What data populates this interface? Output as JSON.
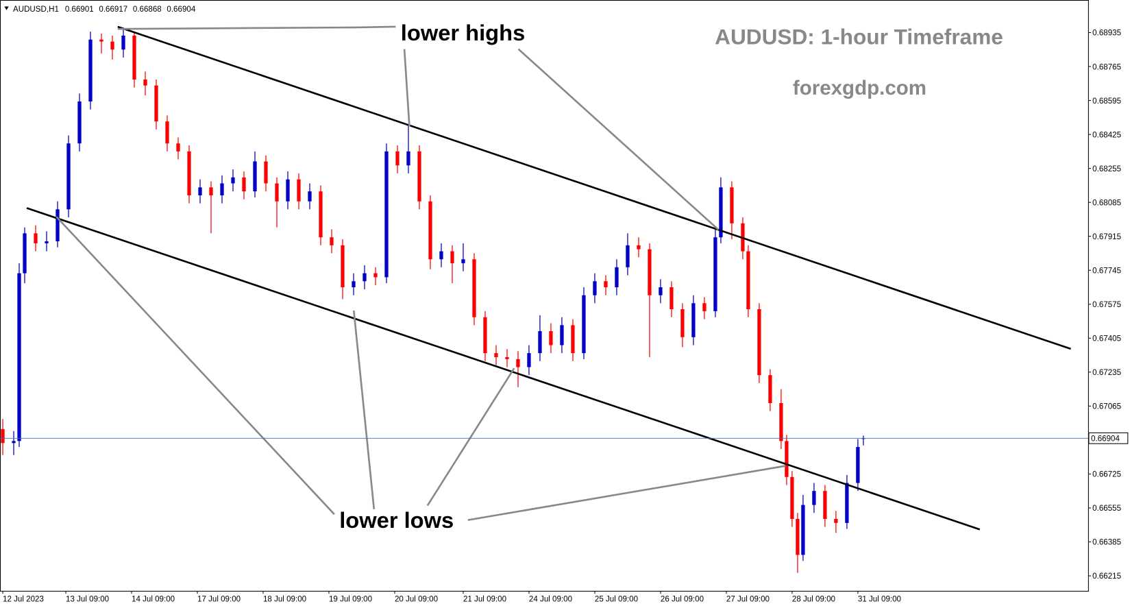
{
  "chart_data": {
    "type": "candlestick",
    "symbol": "AUDUSD,H1",
    "header_ohlc": [
      0.66901,
      0.66917,
      0.66868,
      0.66904
    ],
    "title": "AUDUSD: 1-hour Timeframe",
    "subtitle": "forexgdp.com",
    "annotations": [
      "lower highs",
      "lower lows"
    ],
    "up_color": "#0000cc",
    "down_color": "#ff0000",
    "x": [
      0,
      4,
      6,
      8,
      12,
      16,
      20,
      24,
      28,
      32,
      36,
      40,
      44,
      48,
      52,
      56,
      60,
      64,
      68,
      72,
      76,
      80,
      84,
      88,
      92,
      96,
      100,
      104,
      108,
      112,
      116,
      120,
      124,
      128,
      132,
      136,
      140,
      144,
      148,
      152,
      156,
      160,
      164,
      168,
      172,
      176,
      180,
      184,
      188,
      192,
      196,
      200,
      204,
      208,
      212,
      216,
      220,
      224,
      228,
      232,
      236,
      240,
      244,
      248,
      252,
      256,
      260,
      262,
      266,
      270,
      272,
      276,
      280,
      284,
      286,
      288,
      290,
      292,
      296,
      300,
      304,
      308,
      312,
      314
    ],
    "open": [
      0.6695,
      0.6688,
      0.6689,
      0.6773,
      0.6793,
      0.6788,
      0.6789,
      0.6805,
      0.6838,
      0.6859,
      0.689,
      0.6889,
      0.6885,
      0.6892,
      0.687,
      0.6867,
      0.6849,
      0.6838,
      0.6834,
      0.6812,
      0.6816,
      0.6812,
      0.6818,
      0.6821,
      0.6814,
      0.6829,
      0.6818,
      0.6809,
      0.682,
      0.6809,
      0.6814,
      0.6791,
      0.6787,
      0.6766,
      0.6769,
      0.6773,
      0.6771,
      0.6834,
      0.6827,
      0.6834,
      0.6809,
      0.678,
      0.6784,
      0.6778,
      0.678,
      0.6751,
      0.6733,
      0.6731,
      0.673,
      0.6726,
      0.6733,
      0.6744,
      0.6737,
      0.6747,
      0.6733,
      0.6762,
      0.6769,
      0.6766,
      0.6776,
      0.6787,
      0.6785,
      0.6762,
      0.6766,
      0.6755,
      0.6741,
      0.6758,
      0.6754,
      0.6791,
      0.6816,
      0.6798,
      0.6784,
      0.6755,
      0.6722,
      0.6708,
      0.6689,
      0.6671,
      0.665,
      0.6632,
      0.6657,
      0.6664,
      0.665,
      0.6648,
      0.6668,
      0.66901
    ],
    "high": [
      0.67,
      0.6694,
      0.6778,
      0.6796,
      0.6797,
      0.6794,
      0.6809,
      0.6842,
      0.6863,
      0.6894,
      0.6893,
      0.6892,
      0.6896,
      0.6894,
      0.6874,
      0.687,
      0.6852,
      0.6841,
      0.6837,
      0.682,
      0.6819,
      0.6822,
      0.6825,
      0.6824,
      0.6834,
      0.6832,
      0.6821,
      0.6824,
      0.6823,
      0.6818,
      0.6817,
      0.6795,
      0.679,
      0.6773,
      0.6777,
      0.6776,
      0.6838,
      0.6837,
      0.6847,
      0.6837,
      0.6812,
      0.6788,
      0.6787,
      0.6788,
      0.6783,
      0.6754,
      0.6737,
      0.6735,
      0.6734,
      0.6737,
      0.6752,
      0.6748,
      0.6751,
      0.675,
      0.6766,
      0.6773,
      0.6772,
      0.678,
      0.6793,
      0.6791,
      0.6788,
      0.677,
      0.6769,
      0.6758,
      0.6762,
      0.6761,
      0.6795,
      0.6821,
      0.6819,
      0.6801,
      0.6787,
      0.6758,
      0.6725,
      0.6715,
      0.6692,
      0.6674,
      0.6653,
      0.6662,
      0.6668,
      0.6667,
      0.6654,
      0.6672,
      0.669,
      0.66917
    ],
    "low": [
      0.6682,
      0.6682,
      0.6686,
      0.6768,
      0.6784,
      0.6784,
      0.6786,
      0.6801,
      0.6834,
      0.6855,
      0.6883,
      0.688,
      0.6881,
      0.6866,
      0.6862,
      0.6845,
      0.6834,
      0.683,
      0.6808,
      0.6808,
      0.6793,
      0.6808,
      0.6814,
      0.681,
      0.6811,
      0.6814,
      0.6796,
      0.6805,
      0.6805,
      0.6805,
      0.6787,
      0.6783,
      0.676,
      0.6762,
      0.6765,
      0.6767,
      0.6768,
      0.6823,
      0.6823,
      0.6805,
      0.6775,
      0.6776,
      0.6768,
      0.6774,
      0.6747,
      0.6729,
      0.6727,
      0.6726,
      0.6716,
      0.6722,
      0.6729,
      0.6733,
      0.6733,
      0.6729,
      0.673,
      0.6758,
      0.6762,
      0.6762,
      0.6772,
      0.6781,
      0.6731,
      0.6758,
      0.6751,
      0.6736,
      0.6737,
      0.675,
      0.6751,
      0.6788,
      0.679,
      0.678,
      0.6751,
      0.6718,
      0.6704,
      0.6685,
      0.6667,
      0.6646,
      0.6623,
      0.6629,
      0.6653,
      0.6646,
      0.6643,
      0.6645,
      0.6664,
      0.66868
    ],
    "close": [
      0.6688,
      0.6689,
      0.6773,
      0.6793,
      0.6788,
      0.6789,
      0.6805,
      0.6838,
      0.6859,
      0.689,
      0.6889,
      0.6885,
      0.6892,
      0.687,
      0.6867,
      0.6849,
      0.6838,
      0.6834,
      0.6812,
      0.6816,
      0.6812,
      0.6818,
      0.6821,
      0.6814,
      0.6829,
      0.6818,
      0.6809,
      0.682,
      0.6809,
      0.6814,
      0.6791,
      0.6787,
      0.6766,
      0.6769,
      0.6773,
      0.6771,
      0.6834,
      0.6827,
      0.6834,
      0.6809,
      0.678,
      0.6784,
      0.6778,
      0.678,
      0.6751,
      0.6733,
      0.6731,
      0.673,
      0.6726,
      0.6733,
      0.6744,
      0.6737,
      0.6747,
      0.6733,
      0.6762,
      0.6769,
      0.6766,
      0.6776,
      0.6787,
      0.6785,
      0.6762,
      0.6766,
      0.6755,
      0.6741,
      0.6758,
      0.6754,
      0.6791,
      0.6816,
      0.6798,
      0.6784,
      0.6755,
      0.6722,
      0.6708,
      0.6689,
      0.6671,
      0.665,
      0.6632,
      0.6657,
      0.6664,
      0.665,
      0.6648,
      0.6668,
      0.6686,
      0.66904
    ],
    "current_price": 0.66904,
    "current_price_color": "#4a6ab0",
    "xlim": [
      -1,
      396
    ],
    "ylim": [
      0.6614,
      0.6908
    ],
    "xticks": [
      {
        "value": 0,
        "label": "12 Jul 2023"
      },
      {
        "value": 23,
        "label": "13 Jul 09:00"
      },
      {
        "value": 47,
        "label": "14 Jul 09:00"
      },
      {
        "value": 71,
        "label": "17 Jul 09:00"
      },
      {
        "value": 95,
        "label": "18 Jul 09:00"
      },
      {
        "value": 119,
        "label": "19 Jul 09:00"
      },
      {
        "value": 143,
        "label": "20 Jul 09:00"
      },
      {
        "value": 168,
        "label": "21 Jul 09:00"
      },
      {
        "value": 192,
        "label": "24 Jul 09:00"
      },
      {
        "value": 216,
        "label": "25 Jul 09:00"
      },
      {
        "value": 240,
        "label": "26 Jul 09:00"
      },
      {
        "value": 264,
        "label": "27 Jul 09:00"
      },
      {
        "value": 288,
        "label": "28 Jul 09:00"
      },
      {
        "value": 312,
        "label": "31 Jul 09:00"
      }
    ],
    "yticks": [
      0.68935,
      0.68765,
      0.68595,
      0.68425,
      0.68255,
      0.68085,
      0.67915,
      0.67745,
      0.67575,
      0.67405,
      0.67235,
      0.67065,
      0.66725,
      0.66555,
      0.66385,
      0.66215
    ]
  }
}
